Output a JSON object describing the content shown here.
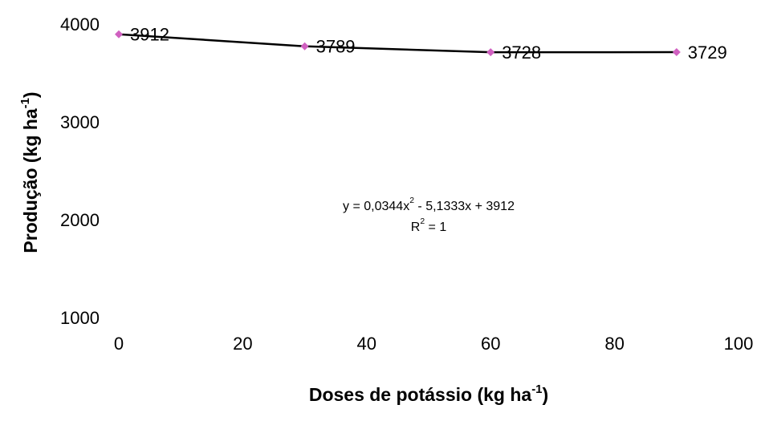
{
  "chart_data": {
    "type": "line",
    "x_label": [
      "Doses de potássio (kg ha",
      "-1",
      ")"
    ],
    "y_label": [
      "Produção (kg ha",
      "-1",
      ")"
    ],
    "x": [
      0,
      30,
      60,
      90
    ],
    "series": [
      {
        "name": "Produção",
        "color": "#000000",
        "marker_color": "#d060c0",
        "values": [
          3912,
          3789,
          3728,
          3729
        ]
      }
    ],
    "annotations": [
      [
        "y = 0,0344x",
        "2",
        " - 5,1333x + 3912"
      ],
      [
        "R",
        "2",
        " = 1"
      ]
    ],
    "xlim": [
      0,
      100
    ],
    "xticks": [
      0,
      20,
      40,
      60,
      80,
      100
    ],
    "ylim": [
      1000,
      4000
    ],
    "yticks": [
      1000,
      2000,
      3000,
      4000
    ],
    "grid": false
  }
}
